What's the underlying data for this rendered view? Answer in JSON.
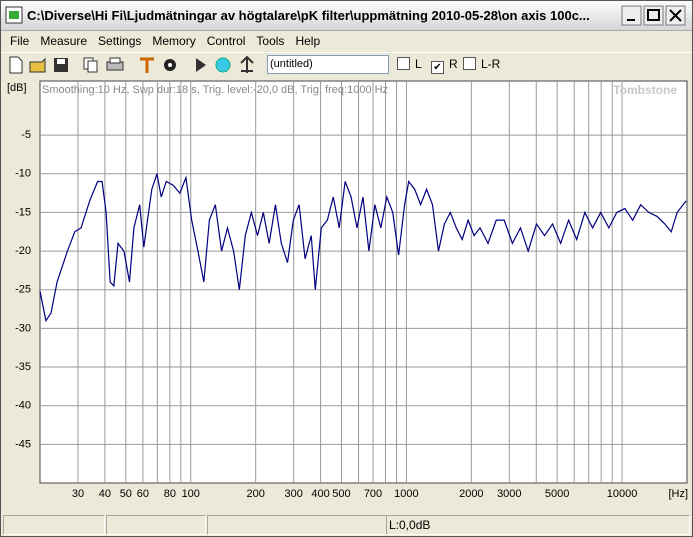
{
  "window": {
    "title": "C:\\Diverse\\Hi Fi\\Ljudmätningar av högtalare\\pK filter\\uppmätning 2010-05-28\\on axis 100c..."
  },
  "menu": [
    "File",
    "Measure",
    "Settings",
    "Memory",
    "Control",
    "Tools",
    "Help"
  ],
  "toolbar": {
    "preset": "(untitled)",
    "checkboxes": [
      {
        "label": "L",
        "checked": false
      },
      {
        "label": "R",
        "checked": true
      },
      {
        "label": "L-R",
        "checked": false
      }
    ]
  },
  "status": {
    "level": "L:0,0dB"
  },
  "chart_data": {
    "type": "line",
    "y_label": "[dB]",
    "x_label": "[Hz]",
    "info": "Smoothing:10 Hz, Swp dur:18 s, Trig. level:-20,0 dB, Trig. freq:1000 Hz",
    "watermark": "Tombstone",
    "log_x": true,
    "grid": true,
    "xlim": [
      20,
      20000
    ],
    "ylim": [
      -50,
      2
    ],
    "xticks": [
      30,
      40,
      50,
      60,
      80,
      100,
      200,
      300,
      400,
      500,
      700,
      1000,
      2000,
      3000,
      5000,
      10000
    ],
    "x_grid": [
      30,
      40,
      50,
      60,
      70,
      80,
      90,
      100,
      200,
      300,
      400,
      500,
      600,
      700,
      800,
      900,
      1000,
      2000,
      3000,
      4000,
      5000,
      6000,
      7000,
      8000,
      9000,
      10000
    ],
    "yticks": [
      -5,
      -10,
      -15,
      -20,
      -25,
      -30,
      -35,
      -40,
      -45
    ],
    "x": [
      20,
      21.3,
      22.5,
      24,
      26.8,
      29,
      31,
      34,
      37,
      38.8,
      40.5,
      42.3,
      44,
      46,
      49,
      52,
      54.5,
      58,
      60.6,
      63,
      66,
      69.7,
      73,
      77,
      83,
      89,
      95,
      101,
      108,
      115,
      122,
      130,
      139,
      148,
      158,
      168,
      179,
      191,
      204,
      217,
      231,
      247,
      263,
      281,
      299,
      318,
      339,
      362,
      378,
      403,
      430,
      458,
      488,
      520,
      554,
      590,
      629,
      670,
      714,
      761,
      811,
      864,
      920,
      981,
      1025,
      1092,
      1164,
      1240,
      1321,
      1408,
      1500,
      1598,
      1703,
      1814,
      1933,
      2060,
      2195,
      2390,
      2610,
      2840,
      3100,
      3380,
      3670,
      4010,
      4370,
      4760,
      5190,
      5650,
      6160,
      6720,
      7300,
      7960,
      8680,
      9450,
      10300,
      11200,
      12200,
      13300,
      14500,
      15800,
      16900,
      18000,
      19200,
      19800
    ],
    "series": [
      {
        "color": "#000080",
        "values": [
          -25.2,
          -29,
          -28,
          -24,
          -20,
          -17.5,
          -17,
          -13.5,
          -11,
          -11,
          -15,
          -24,
          -24.5,
          -19,
          -20,
          -24,
          -17,
          -14,
          -19.5,
          -16,
          -12,
          -10,
          -13,
          -11,
          -11.5,
          -12.5,
          -10.5,
          -16,
          -20,
          -24,
          -16,
          -14,
          -20,
          -17,
          -20,
          -25,
          -18,
          -15,
          -18,
          -15,
          -19,
          -14,
          -19,
          -21.5,
          -16,
          -14,
          -21,
          -18,
          -25,
          -17,
          -16,
          -13,
          -17,
          -11,
          -13,
          -17,
          -13,
          -20,
          -14,
          -17,
          -13,
          -15,
          -20.5,
          -14,
          -11,
          -12,
          -14,
          -12,
          -14,
          -20,
          -16.5,
          -15,
          -17,
          -18.5,
          -16,
          -18,
          -17,
          -19,
          -16,
          -16,
          -19,
          -17,
          -20,
          -16.5,
          -18,
          -16.5,
          -19,
          -16,
          -18.5,
          -15,
          -17,
          -15,
          -17,
          -15,
          -14.5,
          -16,
          -14,
          -15,
          -15.5,
          -16.5,
          -17.5,
          -15,
          -14,
          -13.5
        ]
      }
    ]
  }
}
